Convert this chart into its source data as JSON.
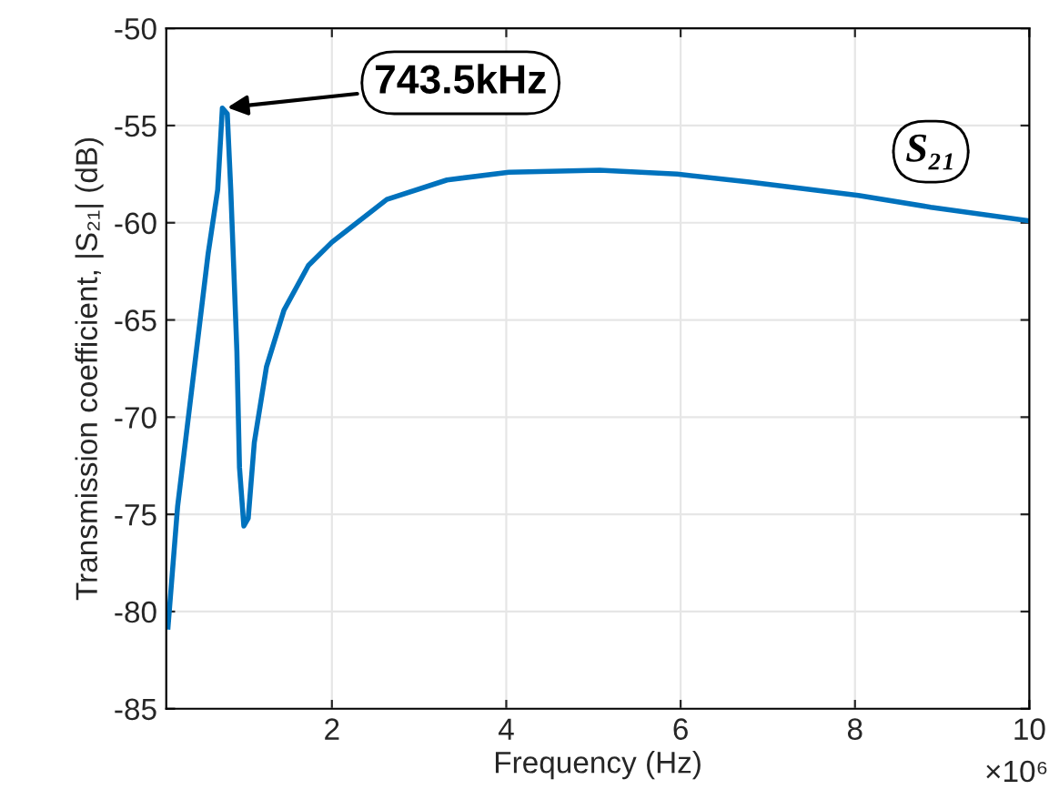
{
  "chart_data": {
    "type": "line",
    "xlabel": "Frequency (Hz)",
    "ylabel": "Transmission coefficient, |S₂₁| (dB)",
    "xlim": [
      0.1,
      10
    ],
    "ylim": [
      -85,
      -50
    ],
    "xticks": [
      2,
      4,
      6,
      8,
      10
    ],
    "yticks": [
      -85,
      -80,
      -75,
      -70,
      -65,
      -60,
      -55,
      -50
    ],
    "grid": true,
    "marker": "none",
    "line_style": "solid",
    "annotations": [
      {
        "text": "743.5kHz",
        "x": 0.7435,
        "y": -54.1
      },
      "×10⁶"
    ],
    "series": [
      {
        "name": "S₂₁",
        "color": "#0072bd",
        "x": [
          0.12,
          0.23,
          0.37,
          0.58,
          0.69,
          0.7435,
          0.8,
          0.84,
          0.91,
          0.94,
          0.99,
          1.04,
          1.11,
          1.25,
          1.45,
          1.73,
          2.0,
          2.63,
          3.32,
          4.03,
          5.07,
          5.96,
          6.79,
          8.04,
          8.87,
          10.0
        ],
        "values": [
          -80.8,
          -74.6,
          -69.4,
          -61.6,
          -58.3,
          -54.1,
          -54.4,
          -58.3,
          -66.6,
          -72.6,
          -75.6,
          -75.2,
          -71.3,
          -67.4,
          -64.5,
          -62.2,
          -61.0,
          -58.8,
          -57.8,
          -57.4,
          -57.3,
          -57.5,
          -57.9,
          -58.6,
          -59.2,
          -59.9
        ]
      }
    ]
  }
}
